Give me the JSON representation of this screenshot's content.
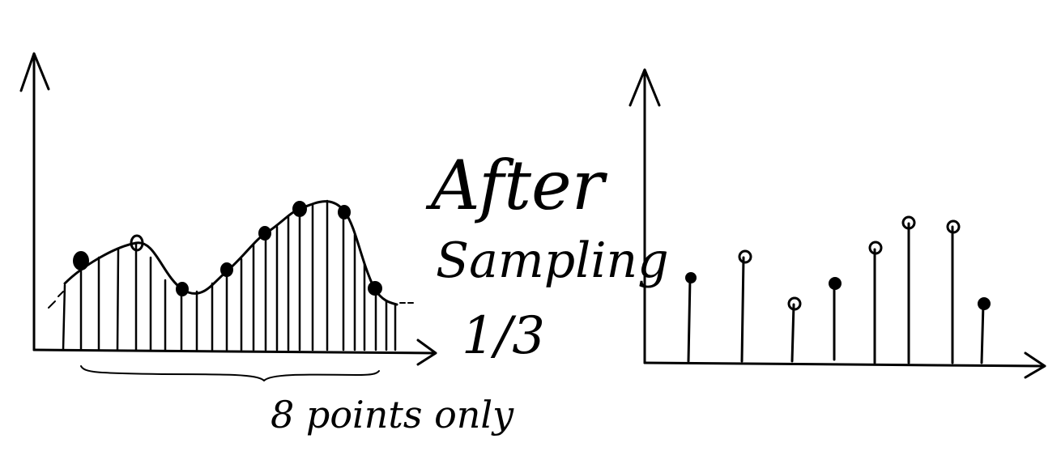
{
  "labels": {
    "title_line1": "After",
    "title_line2": "Sampling",
    "ratio": "1/3",
    "brace_note": "8 points only"
  },
  "diagram": {
    "original_sample_count": 24,
    "sampling_factor": "1/3",
    "kept_sample_count": 8,
    "kept_sample_values": [
      0.3,
      0.4,
      0.22,
      0.28,
      0.38,
      0.5,
      0.49,
      0.17
    ]
  },
  "colors": {
    "ink": "#000000",
    "background": "#ffffff"
  }
}
